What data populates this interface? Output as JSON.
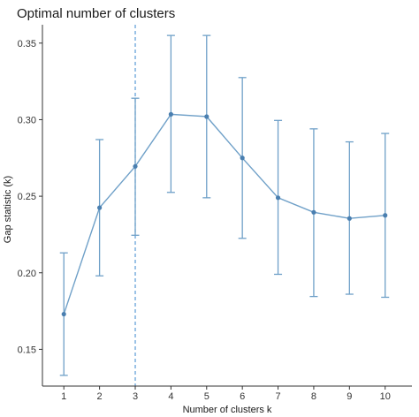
{
  "chart_data": {
    "type": "line",
    "title": "Optimal number of clusters",
    "xlabel": "Number of clusters k",
    "ylabel": "Gap statistic (k)",
    "x": [
      1,
      2,
      3,
      4,
      5,
      6,
      7,
      8,
      9,
      10
    ],
    "series": [
      {
        "values": [
          0.173,
          0.2425,
          0.2695,
          0.3035,
          0.302,
          0.275,
          0.249,
          0.2395,
          0.2355,
          0.2375
        ],
        "error_low": [
          0.133,
          0.198,
          0.2245,
          0.2525,
          0.249,
          0.2225,
          0.199,
          0.1845,
          0.186,
          0.184
        ],
        "error_high": [
          0.213,
          0.287,
          0.314,
          0.355,
          0.355,
          0.3275,
          0.2995,
          0.294,
          0.2855,
          0.291
        ]
      }
    ],
    "optimal_k": 3,
    "xlim": [
      0.4,
      10.75
    ],
    "ylim": [
      0.126,
      0.362
    ],
    "y_ticks": [
      0.15,
      0.2,
      0.25,
      0.3,
      0.35
    ],
    "x_ticks": [
      1,
      2,
      3,
      4,
      5,
      6,
      7,
      8,
      9,
      10
    ],
    "grid": false,
    "colors": {
      "line": "#6fa0c8",
      "point": "#4a7fb0",
      "error_bar": "#6fa0c8",
      "vline": "#5a9bd5",
      "axis": "#333333"
    }
  }
}
